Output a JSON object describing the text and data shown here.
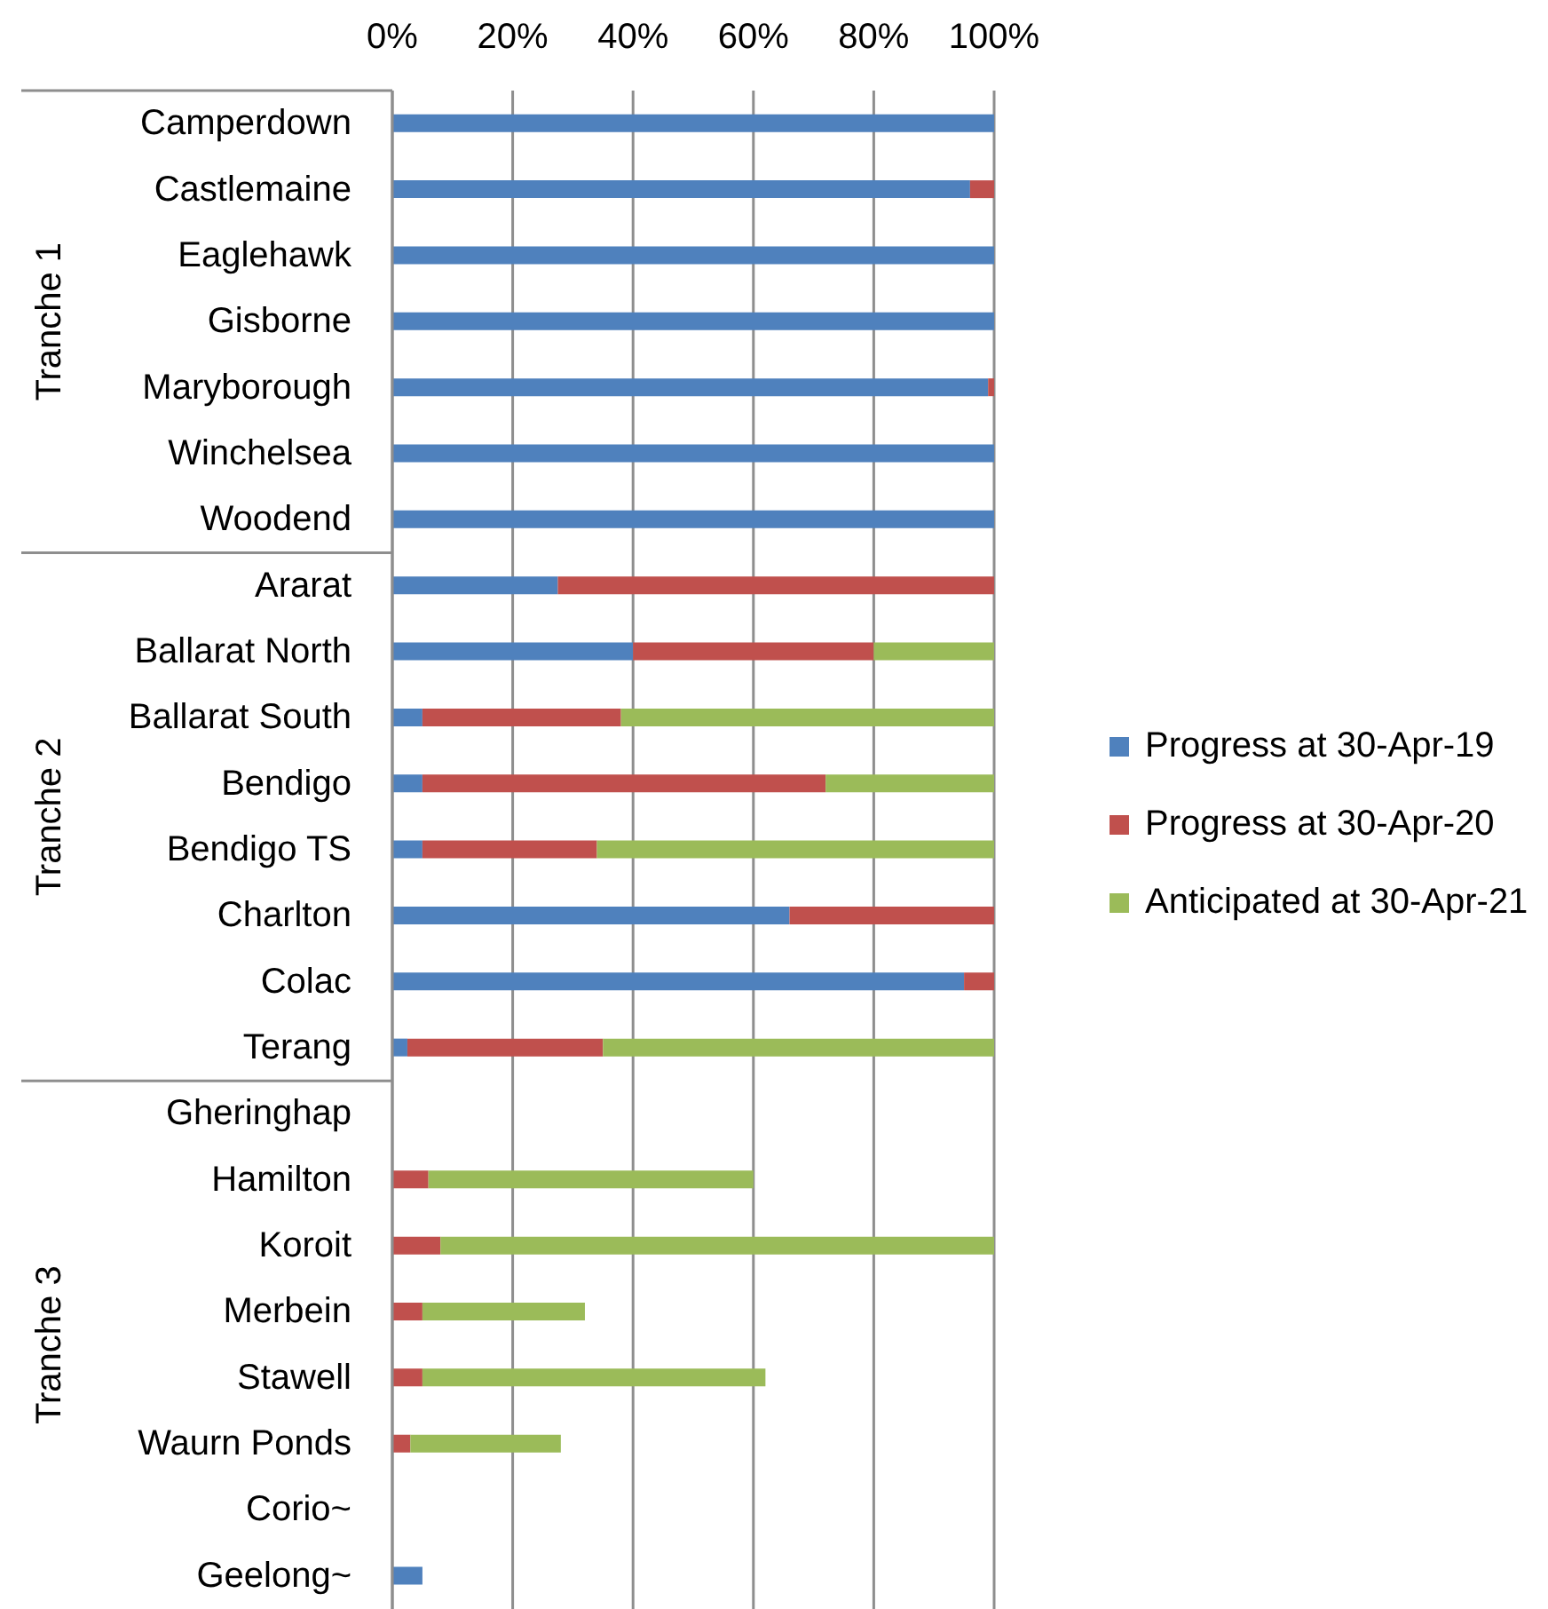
{
  "chart_data": {
    "type": "bar",
    "orientation": "horizontal",
    "stacked": true,
    "categories": [
      "Camperdown",
      "Castlemaine",
      "Eaglehawk",
      "Gisborne",
      "Maryborough",
      "Winchelsea",
      "Woodend",
      "Ararat",
      "Ballarat North",
      "Ballarat South",
      "Bendigo",
      "Bendigo TS",
      "Charlton",
      "Colac",
      "Terang",
      "Gheringhap",
      "Hamilton",
      "Koroit",
      "Merbein",
      "Stawell",
      "Waurn Ponds",
      "Corio~",
      "Geelong~"
    ],
    "series": [
      {
        "name": "Progress at 30-Apr-19",
        "color": "#4f81bd",
        "values": [
          100,
          96,
          100,
          100,
          99,
          100,
          100,
          27.5,
          40,
          5,
          5,
          5,
          66,
          95,
          2.5,
          0,
          0,
          0,
          0,
          0,
          0,
          0,
          5
        ]
      },
      {
        "name": "Progress at 30-Apr-20",
        "color": "#c0504d",
        "values": [
          0,
          4,
          0,
          0,
          1,
          0,
          0,
          72.5,
          40,
          33,
          67,
          29,
          34,
          5,
          32.5,
          0,
          6,
          8,
          5,
          5,
          3,
          0,
          0
        ]
      },
      {
        "name": "Anticipated at 30-Apr-21",
        "color": "#9bbb59",
        "values": [
          0,
          0,
          0,
          0,
          0,
          0,
          0,
          0,
          20,
          62,
          28,
          66,
          0,
          0,
          65,
          0,
          54,
          92,
          27,
          57,
          25,
          0,
          0
        ]
      }
    ],
    "xlim": [
      0,
      100
    ],
    "xticks": [
      {
        "value": 0,
        "label": "0%"
      },
      {
        "value": 20,
        "label": "20%"
      },
      {
        "value": 40,
        "label": "40%"
      },
      {
        "value": 60,
        "label": "60%"
      },
      {
        "value": 80,
        "label": "80%"
      },
      {
        "value": 100,
        "label": "100%"
      }
    ],
    "grid": "x",
    "legend": "right",
    "annotations": [
      "Tranche 1",
      "Tranche 2",
      "Tranche 3"
    ]
  }
}
